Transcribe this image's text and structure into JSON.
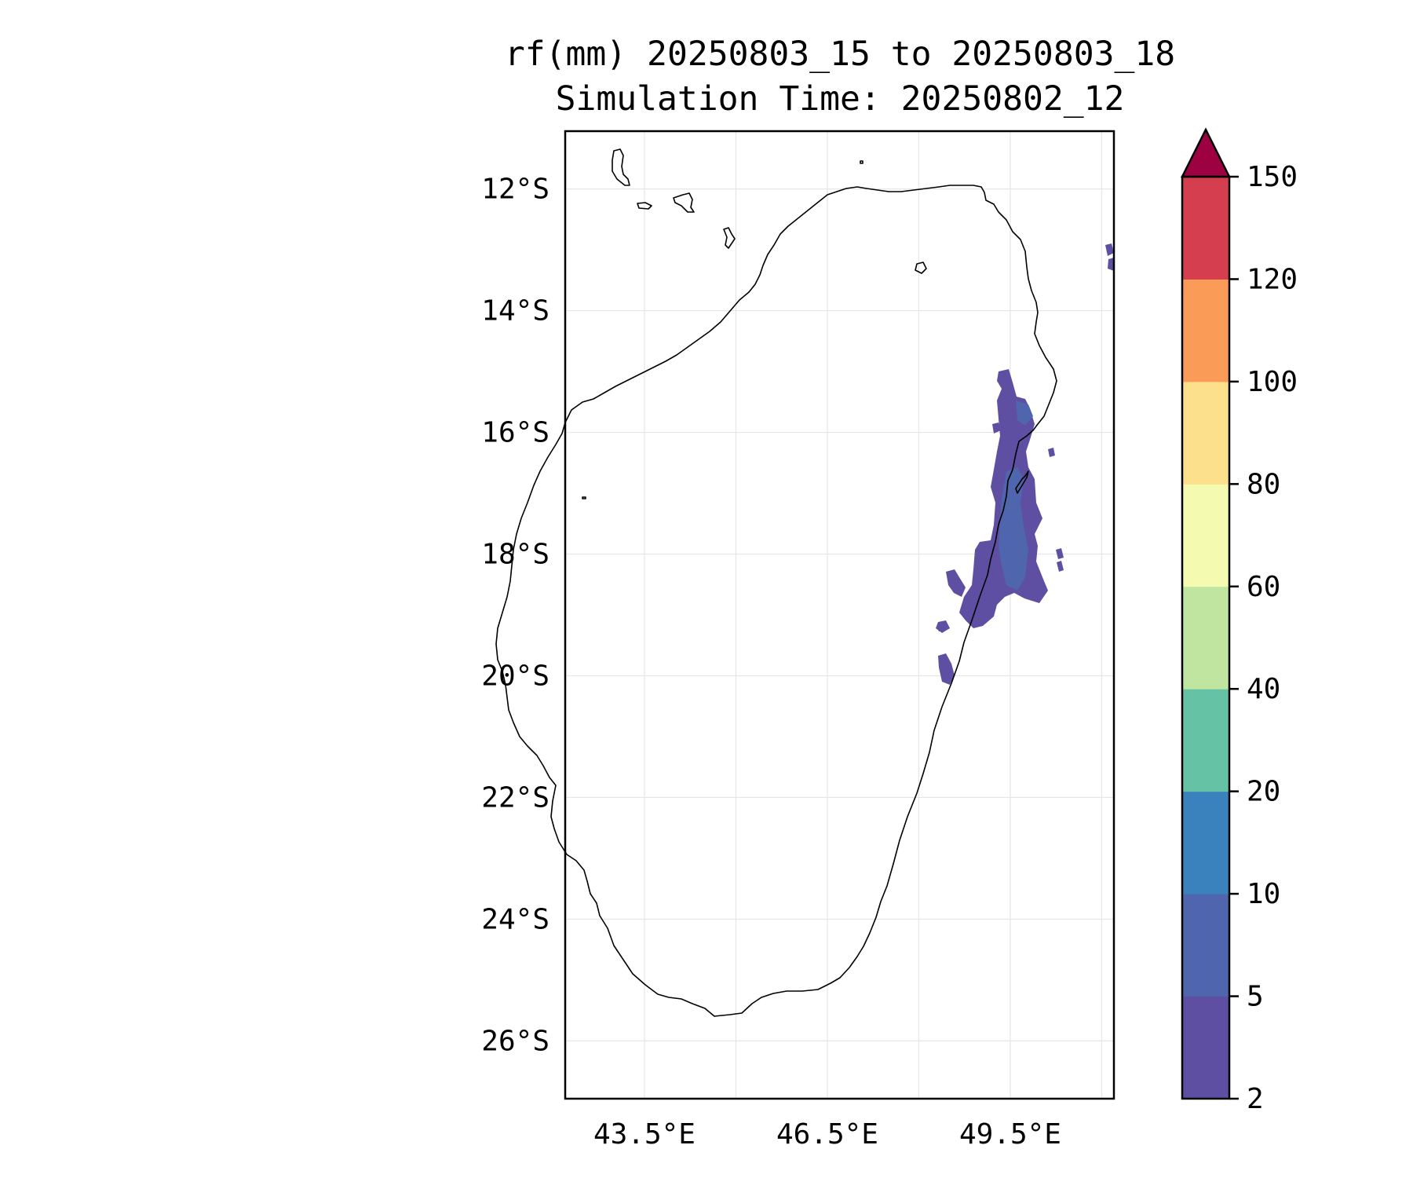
{
  "title": {
    "line1": "rf(mm) 20250803_15 to 20250803_18",
    "line2": "Simulation Time: 20250802_12"
  },
  "map": {
    "lon_range": [
      42.2,
      51.2
    ],
    "lat_range": [
      -26.95,
      -11.05
    ],
    "lon_ticks": [
      {
        "value": 43.5,
        "label": "43.5°E"
      },
      {
        "value": 46.5,
        "label": "46.5°E"
      },
      {
        "value": 49.5,
        "label": "49.5°E"
      }
    ],
    "lon_gridlines": [
      43.5,
      45.0,
      46.5,
      48.0,
      49.5,
      51.0
    ],
    "lat_ticks": [
      {
        "value": -12,
        "label": "12°S"
      },
      {
        "value": -14,
        "label": "14°S"
      },
      {
        "value": -16,
        "label": "16°S"
      },
      {
        "value": -18,
        "label": "18°S"
      },
      {
        "value": -20,
        "label": "20°S"
      },
      {
        "value": -22,
        "label": "22°S"
      },
      {
        "value": -24,
        "label": "24°S"
      },
      {
        "value": -26,
        "label": "26°S"
      }
    ],
    "grid": true
  },
  "colorbar": {
    "levels": [
      {
        "value": 2,
        "label": "2"
      },
      {
        "value": 5,
        "label": "5"
      },
      {
        "value": 10,
        "label": "10"
      },
      {
        "value": 20,
        "label": "20"
      },
      {
        "value": 40,
        "label": "40"
      },
      {
        "value": 60,
        "label": "60"
      },
      {
        "value": 80,
        "label": "80"
      },
      {
        "value": 100,
        "label": "100"
      },
      {
        "value": 120,
        "label": "120"
      },
      {
        "value": 150,
        "label": "150"
      }
    ],
    "colors": [
      "#5e4fa2",
      "#4f65ad",
      "#3a82bd",
      "#66c2a5",
      "#bfe5a0",
      "#f4fab0",
      "#fde08b",
      "#fa9b58",
      "#d53e4f"
    ],
    "extend_color": "#9e0142"
  },
  "rain_colors": {
    "light": "#5e4fa2",
    "medium": "#4f65ad"
  }
}
